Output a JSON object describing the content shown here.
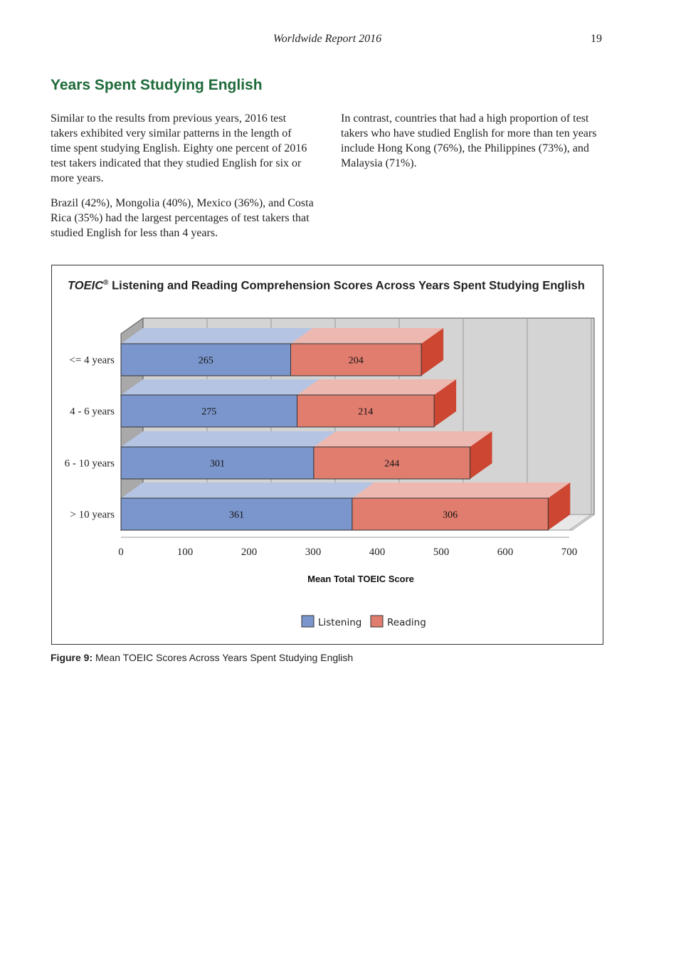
{
  "header": {
    "running_title": "Worldwide Report 2016",
    "page_number": "19"
  },
  "section_title": "Years Spent Studying English",
  "paragraphs_left": [
    "Similar to the results from previous years, 2016 test takers exhibited very similar patterns in the length of time spent studying English. Eighty one percent of 2016 test takers indicated that they studied English for six or more years.",
    "Brazil (42%), Mongolia (40%), Mexico (36%), and Costa Rica (35%) had the largest percentages of test takers that studied English for less than 4 years."
  ],
  "paragraphs_right": [
    "In contrast, countries that had a high proportion of test takers who have studied English for more than ten years include Hong Kong (76%), the Philippines (73%), and Malaysia (71%)."
  ],
  "chart_data": {
    "type": "bar",
    "orientation": "horizontal",
    "stacked": true,
    "style": "3d",
    "title_brand": "TOEIC",
    "title_mark": "®",
    "title": "Listening and Reading Comprehension Scores Across Years Spent Studying English",
    "categories": [
      "<= 4 years",
      "4 - 6 years",
      "6 - 10 years",
      "> 10 years"
    ],
    "series": [
      {
        "name": "Listening",
        "values": [
          265,
          275,
          301,
          361
        ],
        "color": "#7b96cc"
      },
      {
        "name": "Reading",
        "values": [
          204,
          214,
          244,
          306
        ],
        "color": "#e07d6e"
      }
    ],
    "xlabel": "Mean Total TOEIC Score",
    "xlim": [
      0,
      700
    ],
    "xticks": [
      0,
      100,
      200,
      300,
      400,
      500,
      600,
      700
    ],
    "grid": true,
    "legend_position": "bottom"
  },
  "caption": {
    "label": "Figure 9:",
    "text": " Mean TOEIC Scores Across Years Spent Studying English"
  }
}
